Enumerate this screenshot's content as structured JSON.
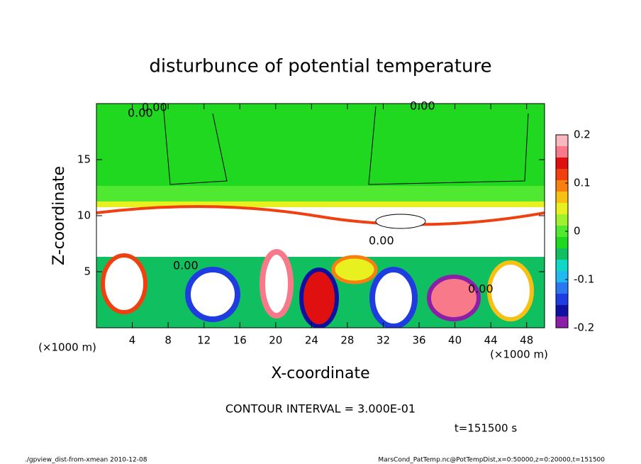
{
  "chart_data": {
    "type": "contour",
    "title": "disturbunce of potential temperature",
    "x_label": "X-coordinate",
    "y_label": "Z-coordinate",
    "x_unit": "(×1000 m)",
    "y_unit": "(×1000 m)",
    "xlim": [
      0,
      50
    ],
    "xticks": [
      4,
      8,
      12,
      16,
      20,
      24,
      28,
      32,
      36,
      40,
      44,
      48
    ],
    "ylim": [
      0,
      20
    ],
    "yticks": [
      5,
      10,
      15
    ],
    "colorbar": {
      "lim": [
        -0.2,
        0.2
      ],
      "ticks": [
        -0.2,
        -0.1,
        0,
        0.1,
        0.2
      ],
      "colors": [
        "#8c1fa8",
        "#1010a0",
        "#1e3ce0",
        "#2a78f0",
        "#22b8f0",
        "#10d8c8",
        "#10c060",
        "#20d820",
        "#50e830",
        "#a0f030",
        "#e8f020",
        "#f8c010",
        "#f88010",
        "#f04010",
        "#e01010",
        "#f87a8a",
        "#f8b8c0"
      ]
    },
    "contour_interval": "CONTOUR INTERVAL = 3.000E-01",
    "time_label": "t=151500 s",
    "contour_labels": [
      "0.00",
      "0.00",
      "0.00",
      "0.00",
      "0.00",
      "0.00"
    ],
    "footer_left": "./gpview_dist-from-xmean  2010-12-08",
    "footer_right": "MarsCond_PatTemp.nc@PotTempDist,x=0:50000,z=0:20000,t=151500"
  }
}
